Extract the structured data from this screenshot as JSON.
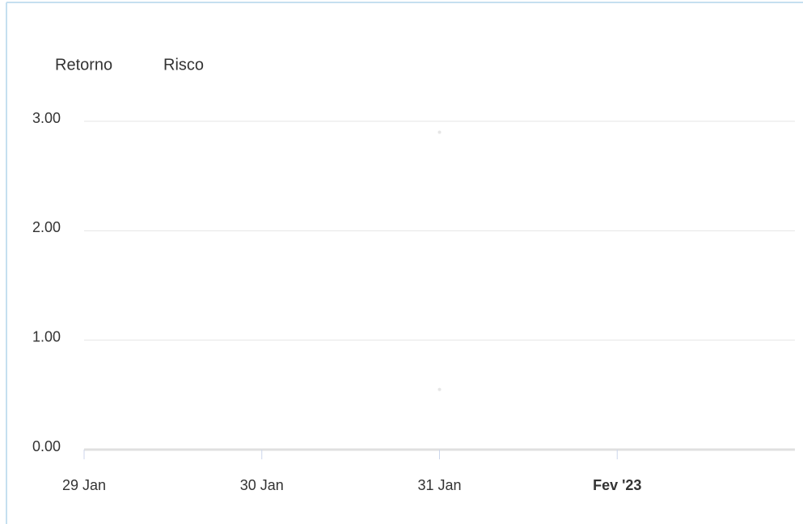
{
  "chart_data": {
    "type": "scatter",
    "categories": [
      "29 Jan",
      "30 Jan",
      "31 Jan",
      "Fev '23"
    ],
    "series": [
      {
        "name": "Retorno",
        "color": "#e6e6e6",
        "values": [
          null,
          null,
          2.9,
          null
        ]
      },
      {
        "name": "Risco",
        "color": "#e6e6e6",
        "values": [
          null,
          null,
          0.55,
          null
        ]
      }
    ],
    "ylim": [
      0,
      3
    ],
    "yticks": [
      {
        "value": 0,
        "label": "0.00"
      },
      {
        "value": 1,
        "label": "1.00"
      },
      {
        "value": 2,
        "label": "2.00"
      },
      {
        "value": 3,
        "label": "3.00"
      }
    ],
    "grid": true,
    "legend": "top-left"
  }
}
